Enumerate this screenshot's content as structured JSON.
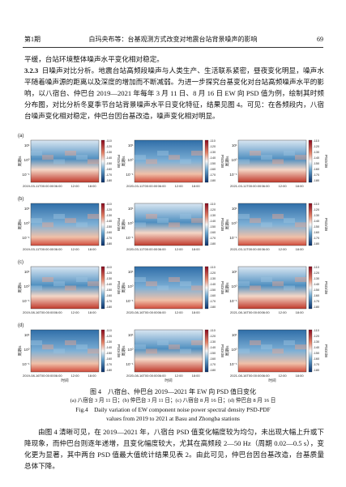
{
  "header": {
    "issue": "第1期",
    "running_title": "白玛央布等：台基观测方式改变对地震台站背景噪声的影响",
    "page": "69"
  },
  "paragraph_1": "平缓，台站环境整体噪声水平变化相对稳定。",
  "section": {
    "number": "3.2.3",
    "text": "日噪声对比分析。地震台站高频段噪声与人类生产、生活联系紧密，昼夜变化明显，噪声水平随着噪声源的距离以及深度的增加而不断减弱。为进一步探究台基变化对台站高频噪声水平的影响，以八宿台、仲巴台 2019—2021 年每年 3 月 11 日、8 月 16 日 EW 向 PSD 值为例，绘制其时频分布图，对比分析冬夏季节台站背景噪声水平日变化特征，结果见图 4。可见：在各频段内，八宿台噪声变化相对稳定，仲巴台因台基改造，噪声变化相对明显。"
  },
  "figure": {
    "panels": [
      {
        "label": "(a)",
        "dates": [
          "2019-03-11T00:00:00",
          "2020-03-11T00:00:00",
          "2021-03-11T00:00:00"
        ]
      },
      {
        "label": "(b)",
        "dates": [
          "2019-03-11T00:00:00",
          "2020-03-11T00:00:00",
          "2021-03-11T00:00:00"
        ]
      },
      {
        "label": "(c)",
        "dates": [
          "2019-08-16T00:00:00",
          "2020-08-16T00:00:00",
          "2021-08-16T00:00:00"
        ]
      },
      {
        "label": "(d)",
        "dates": [
          "2019-08-16T00:00:00",
          "2020-08-16T00:00:00",
          "2021-08-16T00:00:00"
        ]
      }
    ],
    "y_ticks": [
      "10¹",
      "10⁰",
      "10⁻¹"
    ],
    "y_label": "周期/s",
    "colorbar_ticks": [
      -110,
      -120,
      -130,
      -140,
      -150,
      -160,
      -170,
      -180
    ],
    "colorbar_label": "PSD/dB",
    "x_ticks": [
      "06:00",
      "12:00",
      "18:00"
    ],
    "x_label": "时间"
  },
  "caption": {
    "title": "图 4　八宿台、仲巴台 2019—2021 年 EW 向 PSD 值日变化",
    "subtitle": "(a) 八宿台 3 月 11 日；(b) 仲巴台 3 月 11 日；(c) 八宿台 8 月 16 日；(d) 仲巴台 8 月 16 日",
    "en_1": "Fig.4　Daily variation of EW component noise power spectral density PSD-PDF",
    "en_2": "values from 2019 to 2021 at Basu and Zhongba stations"
  },
  "paragraph_2": "由图 4 清晰可见，在 2019—2021 年，八宿台 PSD 值变化幅度较为均匀，未出现大幅上升或下降现象，而仲巴台则逐年递增，且变化幅度较大，尤其在高频段 2—50 Hz（周期 0.02—0.5 s），变化更为显著，其中两台 PSD 值最大值统计结果见表 2。由此可见，仲巴台因台基改造，台基质量总体下降。"
}
